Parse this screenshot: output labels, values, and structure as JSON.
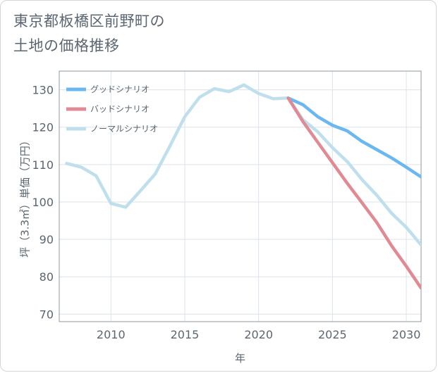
{
  "title": {
    "line1": "東京都板橋区前野町の",
    "line2": "土地の価格推移"
  },
  "chart_data": {
    "type": "line",
    "title": "東京都板橋区前野町の土地の価格推移",
    "xlabel": "年",
    "ylabel": "坪（3.3㎡）単価（万円）",
    "xlim": [
      2006.5,
      2031
    ],
    "ylim": [
      68,
      135
    ],
    "xticks": [
      2010,
      2015,
      2020,
      2025,
      2030
    ],
    "yticks": [
      70,
      80,
      90,
      100,
      110,
      120,
      130
    ],
    "grid": true,
    "legend_position": "top-left",
    "series": [
      {
        "name": "ノーマルシナリオ",
        "color": "#c0dfec",
        "x": [
          2007,
          2008,
          2009,
          2010,
          2011,
          2012,
          2013,
          2014,
          2015,
          2016,
          2017,
          2018,
          2019,
          2020,
          2021,
          2022,
          2023,
          2024,
          2025,
          2026,
          2027,
          2028,
          2029,
          2030,
          2031
        ],
        "values": [
          110.3,
          109.3,
          107.0,
          99.6,
          98.6,
          103.0,
          107.5,
          115.0,
          122.8,
          128.0,
          130.3,
          129.5,
          131.3,
          129.0,
          127.6,
          127.8,
          122.0,
          118.8,
          114.5,
          110.8,
          106.0,
          101.8,
          97.0,
          93.2,
          88.5
        ]
      },
      {
        "name": "グッドシナリオ",
        "color": "#6bb8f0",
        "x": [
          2022,
          2023,
          2024,
          2025,
          2026,
          2027,
          2028,
          2029,
          2030,
          2031
        ],
        "values": [
          127.8,
          126.0,
          122.8,
          120.5,
          119.0,
          116.2,
          114.0,
          111.8,
          109.3,
          106.7
        ]
      },
      {
        "name": "バッドシナリオ",
        "color": "#e08a93",
        "x": [
          2022,
          2023,
          2024,
          2025,
          2026,
          2027,
          2028,
          2029,
          2030,
          2031
        ],
        "values": [
          127.8,
          121.5,
          116.0,
          110.5,
          105.0,
          99.8,
          94.5,
          88.3,
          82.8,
          77.0
        ]
      }
    ],
    "legend_order": [
      "グッドシナリオ",
      "バッドシナリオ",
      "ノーマルシナリオ"
    ]
  }
}
